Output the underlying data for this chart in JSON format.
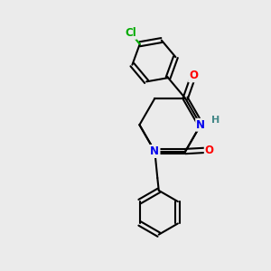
{
  "background_color": "#ebebeb",
  "bond_color": "#000000",
  "atom_colors": {
    "N": "#0000ee",
    "O": "#ff0000",
    "Cl": "#00aa00",
    "C": "#000000",
    "H": "#448888"
  },
  "figsize": [
    3.0,
    3.0
  ],
  "dpi": 100
}
